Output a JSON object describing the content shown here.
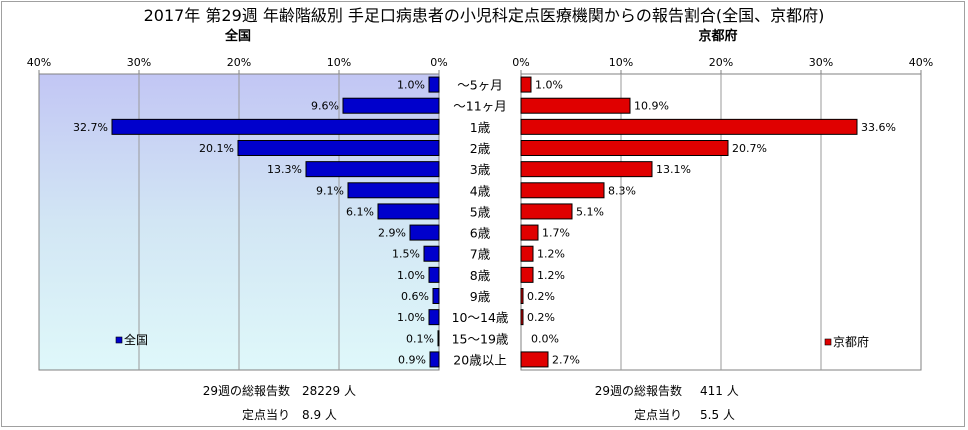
{
  "chart_data": {
    "type": "bar",
    "title": "2017年 第29週 年齢階級別 手足口病患者の小児科定点医療機関からの報告割合(全国、京都府)",
    "categories": [
      "～5ヶ月",
      "～11ヶ月",
      "1歳",
      "2歳",
      "3歳",
      "4歳",
      "5歳",
      "6歳",
      "7歳",
      "8歳",
      "9歳",
      "10～14歳",
      "15～19歳",
      "20歳以上"
    ],
    "xlim": [
      0,
      40
    ],
    "ticks": [
      "0%",
      "10%",
      "20%",
      "30%",
      "40%"
    ],
    "series": [
      {
        "name": "全国",
        "subtitle": "全国",
        "color": "#0000cc",
        "values": [
          1.0,
          9.6,
          32.7,
          20.1,
          13.3,
          9.1,
          6.1,
          2.9,
          1.5,
          1.0,
          0.6,
          1.0,
          0.1,
          0.9
        ],
        "labels": [
          "1.0%",
          "9.6%",
          "32.7%",
          "20.1%",
          "13.3%",
          "9.1%",
          "6.1%",
          "2.9%",
          "1.5%",
          "1.0%",
          "0.6%",
          "1.0%",
          "0.1%",
          "0.9%"
        ]
      },
      {
        "name": "京都府",
        "subtitle": "京都府",
        "color": "#e00000",
        "values": [
          1.0,
          10.9,
          33.6,
          20.7,
          13.1,
          8.3,
          5.1,
          1.7,
          1.2,
          1.2,
          0.2,
          0.2,
          0.0,
          2.7
        ],
        "labels": [
          "1.0%",
          "10.9%",
          "33.6%",
          "20.7%",
          "13.1%",
          "8.3%",
          "5.1%",
          "1.7%",
          "1.2%",
          "1.2%",
          "0.2%",
          "0.2%",
          "0.0%",
          "2.7%"
        ]
      }
    ],
    "legend_position": "bottom-left (全国) / bottom-right (京都府)",
    "background": "gradient periwinkle → pale aqua",
    "grid": true
  },
  "footer": {
    "left": {
      "total_label": "29週の総報告数",
      "total_value": "28229 人",
      "per_label": "定点当り",
      "per_value": "8.9 人"
    },
    "right": {
      "total_label": "29週の総報告数",
      "total_value": "411 人",
      "per_label": "定点当り",
      "per_value": "5.5 人"
    }
  }
}
